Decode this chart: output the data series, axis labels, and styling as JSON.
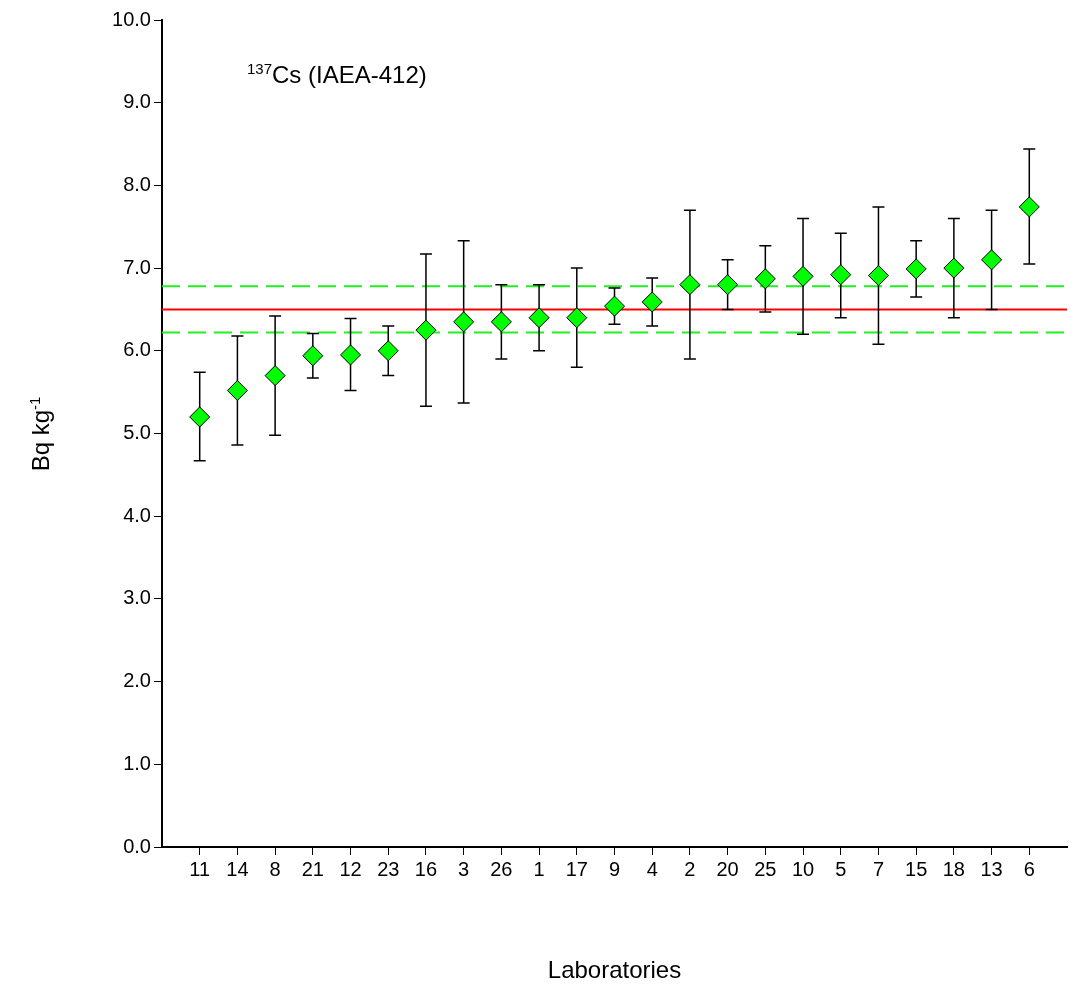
{
  "chart_data": {
    "type": "scatter",
    "xlabel": "Laboratories",
    "ylabel": "Bq kg$^{-1}$",
    "annotations": [
      "$^{137}$Cs (IAEA-412)"
    ],
    "categories": [
      "11",
      "14",
      "8",
      "21",
      "12",
      "23",
      "16",
      "3",
      "26",
      "1",
      "17",
      "9",
      "4",
      "2",
      "20",
      "25",
      "10",
      "5",
      "7",
      "15",
      "18",
      "13",
      "6"
    ],
    "series": [
      {
        "color": "#00ff00",
        "values": [
          5.2,
          5.52,
          5.7,
          5.94,
          5.95,
          6.0,
          6.25,
          6.35,
          6.35,
          6.4,
          6.4,
          6.54,
          6.59,
          6.8,
          6.8,
          6.87,
          6.9,
          6.92,
          6.91,
          6.99,
          7.0,
          7.1,
          7.74
        ],
        "errors": [
          [
            4.67,
            5.74
          ],
          [
            4.86,
            6.18
          ],
          [
            4.98,
            6.42
          ],
          [
            5.67,
            6.21
          ],
          [
            5.52,
            6.39
          ],
          [
            5.7,
            6.3
          ],
          [
            5.33,
            7.17
          ],
          [
            5.37,
            7.33
          ],
          [
            5.9,
            6.8
          ],
          [
            6.0,
            6.8
          ],
          [
            5.8,
            7.0
          ],
          [
            6.32,
            6.76
          ],
          [
            6.3,
            6.88
          ],
          [
            5.9,
            7.7
          ],
          [
            6.5,
            7.1
          ],
          [
            6.47,
            7.27
          ],
          [
            6.2,
            7.6
          ],
          [
            6.4,
            7.42
          ],
          [
            6.08,
            7.74
          ],
          [
            6.65,
            7.33
          ],
          [
            6.4,
            7.6
          ],
          [
            6.5,
            7.7
          ],
          [
            7.05,
            8.44
          ]
        ]
      }
    ],
    "ylim": [
      0,
      10
    ],
    "yticks": [
      {
        "value": 0,
        "label": "0.0"
      },
      {
        "value": 1,
        "label": "1.0"
      },
      {
        "value": 2,
        "label": "2.0"
      },
      {
        "value": 3,
        "label": "3.0"
      },
      {
        "value": 4,
        "label": "4.0"
      },
      {
        "value": 5,
        "label": "5.0"
      },
      {
        "value": 6,
        "label": "6.0"
      },
      {
        "value": 7,
        "label": "7.0"
      },
      {
        "value": 8,
        "label": "8.0"
      },
      {
        "value": 9,
        "label": "9.0"
      },
      {
        "value": 10,
        "label": "10.0"
      }
    ],
    "ref_lines": [
      {
        "axis": "y",
        "value": 6.5,
        "color": "#ff0000",
        "line_style": "solid"
      },
      {
        "axis": "y",
        "value": 6.78,
        "color": "#22ee22",
        "line_style": "dashed"
      },
      {
        "axis": "y",
        "value": 6.22,
        "color": "#22ee22",
        "line_style": "dashed"
      }
    ],
    "grid": false,
    "legend": false,
    "marker": "diamond"
  }
}
